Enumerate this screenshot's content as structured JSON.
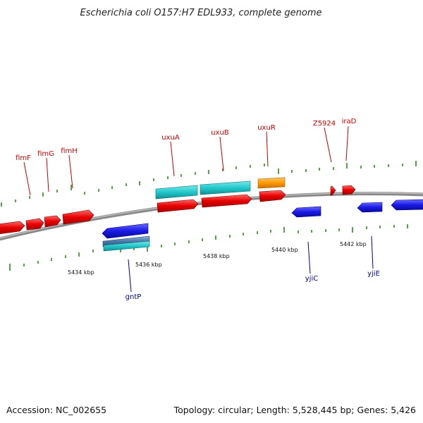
{
  "title": "Escherichia coli O157:H7 EDL933, complete genome",
  "footer": {
    "accession": "Accession: NC_002655",
    "summary": "Topology: circular; Length: 5,528,445 bp; Genes: 5,426"
  },
  "colors": {
    "forward_gene": "#e80000",
    "reverse_gene": "#1a1ae6",
    "cds_cyan": "#22c8cc",
    "misc_orange": "#ff9900",
    "backbone": "#808080",
    "tick": "#2f8a1f",
    "label_forward": "#cc0000",
    "label_reverse": "#000099"
  },
  "scale_labels": [
    {
      "id": "kbp-5434",
      "text": "5434 kbp"
    },
    {
      "id": "kbp-5436",
      "text": "5436 kbp"
    },
    {
      "id": "kbp-5438",
      "text": "5438 kbp"
    },
    {
      "id": "kbp-5440",
      "text": "5440 kbp"
    },
    {
      "id": "kbp-5442",
      "text": "5442 kbp"
    }
  ],
  "genes": {
    "forward": [
      {
        "id": "fimF",
        "label": "fimF"
      },
      {
        "id": "fimG",
        "label": "fimG"
      },
      {
        "id": "fimH",
        "label": "fimH"
      },
      {
        "id": "uxuA",
        "label": "uxuA"
      },
      {
        "id": "uxuB",
        "label": "uxuB"
      },
      {
        "id": "uxuR",
        "label": "uxuR"
      },
      {
        "id": "Z5924",
        "label": "Z5924"
      },
      {
        "id": "iraD",
        "label": "iraD"
      }
    ],
    "reverse": [
      {
        "id": "gntP",
        "label": "gntP"
      },
      {
        "id": "yjiC",
        "label": "yjiC"
      },
      {
        "id": "yjiE",
        "label": "yjiE"
      }
    ]
  }
}
